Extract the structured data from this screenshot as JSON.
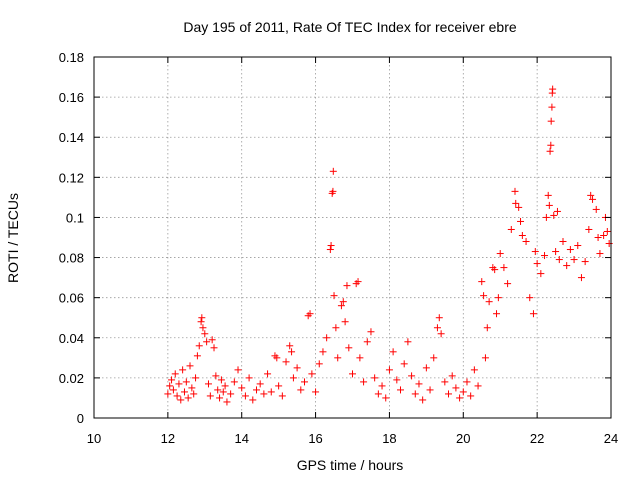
{
  "chart_data": {
    "type": "scatter",
    "title": "Day 195 of 2011, Rate Of TEC Index for receiver ebre",
    "xlabel": "GPS time / hours",
    "ylabel": "ROTI / TECUs",
    "xlim": [
      10,
      24
    ],
    "ylim": [
      0,
      0.18
    ],
    "xticks": [
      10,
      12,
      14,
      16,
      18,
      20,
      22,
      24
    ],
    "yticks": [
      0,
      0.02,
      0.04,
      0.06,
      0.08,
      0.1,
      0.12,
      0.14,
      0.16,
      0.18
    ],
    "xtick_labels": [
      "10",
      "12",
      "14",
      "16",
      "18",
      "20",
      "22",
      "24"
    ],
    "ytick_labels": [
      "0",
      "0.02",
      "0.04",
      "0.06",
      "0.08",
      "0.1",
      "0.12",
      "0.14",
      "0.16",
      "0.18"
    ],
    "grid": true,
    "marker": "+",
    "colors": {
      "points": "#ff0000",
      "grid": "#9a9a9a",
      "frame": "#000000"
    },
    "series": [
      {
        "values": [
          [
            12.0,
            0.012
          ],
          [
            12.05,
            0.016
          ],
          [
            12.1,
            0.019
          ],
          [
            12.15,
            0.014
          ],
          [
            12.2,
            0.022
          ],
          [
            12.25,
            0.011
          ],
          [
            12.3,
            0.017
          ],
          [
            12.35,
            0.009
          ],
          [
            12.4,
            0.024
          ],
          [
            12.45,
            0.013
          ],
          [
            12.5,
            0.018
          ],
          [
            12.55,
            0.01
          ],
          [
            12.6,
            0.026
          ],
          [
            12.65,
            0.015
          ],
          [
            12.7,
            0.012
          ],
          [
            12.75,
            0.02
          ],
          [
            12.8,
            0.031
          ],
          [
            12.85,
            0.036
          ],
          [
            12.9,
            0.048
          ],
          [
            12.92,
            0.05
          ],
          [
            12.95,
            0.045
          ],
          [
            13.0,
            0.042
          ],
          [
            13.05,
            0.038
          ],
          [
            13.1,
            0.017
          ],
          [
            13.15,
            0.011
          ],
          [
            13.2,
            0.039
          ],
          [
            13.25,
            0.035
          ],
          [
            13.3,
            0.021
          ],
          [
            13.35,
            0.014
          ],
          [
            13.4,
            0.01
          ],
          [
            13.45,
            0.019
          ],
          [
            13.5,
            0.013
          ],
          [
            13.55,
            0.016
          ],
          [
            13.6,
            0.008
          ],
          [
            13.7,
            0.012
          ],
          [
            13.8,
            0.018
          ],
          [
            13.9,
            0.024
          ],
          [
            14.0,
            0.015
          ],
          [
            14.1,
            0.011
          ],
          [
            14.2,
            0.02
          ],
          [
            14.3,
            0.009
          ],
          [
            14.4,
            0.014
          ],
          [
            14.5,
            0.017
          ],
          [
            14.6,
            0.012
          ],
          [
            14.7,
            0.022
          ],
          [
            14.8,
            0.013
          ],
          [
            14.9,
            0.031
          ],
          [
            14.95,
            0.03
          ],
          [
            15.0,
            0.016
          ],
          [
            15.1,
            0.011
          ],
          [
            15.2,
            0.028
          ],
          [
            15.3,
            0.036
          ],
          [
            15.35,
            0.033
          ],
          [
            15.4,
            0.02
          ],
          [
            15.5,
            0.025
          ],
          [
            15.6,
            0.014
          ],
          [
            15.7,
            0.018
          ],
          [
            15.8,
            0.051
          ],
          [
            15.85,
            0.052
          ],
          [
            15.9,
            0.022
          ],
          [
            16.0,
            0.013
          ],
          [
            16.1,
            0.027
          ],
          [
            16.2,
            0.033
          ],
          [
            16.3,
            0.04
          ],
          [
            16.4,
            0.084
          ],
          [
            16.42,
            0.086
          ],
          [
            16.45,
            0.112
          ],
          [
            16.47,
            0.113
          ],
          [
            16.48,
            0.123
          ],
          [
            16.5,
            0.061
          ],
          [
            16.55,
            0.045
          ],
          [
            16.6,
            0.03
          ],
          [
            16.7,
            0.056
          ],
          [
            16.75,
            0.058
          ],
          [
            16.8,
            0.048
          ],
          [
            16.85,
            0.066
          ],
          [
            16.9,
            0.035
          ],
          [
            17.0,
            0.022
          ],
          [
            17.1,
            0.067
          ],
          [
            17.15,
            0.068
          ],
          [
            17.2,
            0.03
          ],
          [
            17.3,
            0.018
          ],
          [
            17.4,
            0.038
          ],
          [
            17.5,
            0.043
          ],
          [
            17.6,
            0.02
          ],
          [
            17.7,
            0.012
          ],
          [
            17.8,
            0.016
          ],
          [
            17.9,
            0.01
          ],
          [
            18.0,
            0.024
          ],
          [
            18.1,
            0.033
          ],
          [
            18.2,
            0.019
          ],
          [
            18.3,
            0.014
          ],
          [
            18.4,
            0.027
          ],
          [
            18.5,
            0.038
          ],
          [
            18.6,
            0.021
          ],
          [
            18.7,
            0.012
          ],
          [
            18.8,
            0.017
          ],
          [
            18.9,
            0.009
          ],
          [
            19.0,
            0.025
          ],
          [
            19.1,
            0.014
          ],
          [
            19.2,
            0.03
          ],
          [
            19.3,
            0.045
          ],
          [
            19.35,
            0.05
          ],
          [
            19.4,
            0.042
          ],
          [
            19.5,
            0.018
          ],
          [
            19.6,
            0.012
          ],
          [
            19.7,
            0.021
          ],
          [
            19.8,
            0.015
          ],
          [
            19.9,
            0.01
          ],
          [
            20.0,
            0.013
          ],
          [
            20.1,
            0.018
          ],
          [
            20.2,
            0.011
          ],
          [
            20.3,
            0.024
          ],
          [
            20.4,
            0.016
          ],
          [
            20.5,
            0.068
          ],
          [
            20.55,
            0.061
          ],
          [
            20.6,
            0.03
          ],
          [
            20.65,
            0.045
          ],
          [
            20.7,
            0.058
          ],
          [
            20.8,
            0.075
          ],
          [
            20.85,
            0.074
          ],
          [
            20.9,
            0.052
          ],
          [
            20.95,
            0.06
          ],
          [
            21.0,
            0.082
          ],
          [
            21.1,
            0.075
          ],
          [
            21.2,
            0.067
          ],
          [
            21.3,
            0.094
          ],
          [
            21.4,
            0.113
          ],
          [
            21.42,
            0.107
          ],
          [
            21.5,
            0.105
          ],
          [
            21.55,
            0.098
          ],
          [
            21.6,
            0.091
          ],
          [
            21.7,
            0.088
          ],
          [
            21.8,
            0.06
          ],
          [
            21.9,
            0.052
          ],
          [
            21.95,
            0.083
          ],
          [
            22.0,
            0.077
          ],
          [
            22.1,
            0.072
          ],
          [
            22.2,
            0.081
          ],
          [
            22.25,
            0.1
          ],
          [
            22.3,
            0.111
          ],
          [
            22.33,
            0.106
          ],
          [
            22.35,
            0.133
          ],
          [
            22.37,
            0.136
          ],
          [
            22.38,
            0.148
          ],
          [
            22.4,
            0.155
          ],
          [
            22.41,
            0.162
          ],
          [
            22.42,
            0.164
          ],
          [
            22.45,
            0.101
          ],
          [
            22.5,
            0.083
          ],
          [
            22.55,
            0.103
          ],
          [
            22.6,
            0.079
          ],
          [
            22.7,
            0.088
          ],
          [
            22.8,
            0.076
          ],
          [
            22.9,
            0.084
          ],
          [
            23.0,
            0.079
          ],
          [
            23.1,
            0.086
          ],
          [
            23.2,
            0.07
          ],
          [
            23.3,
            0.078
          ],
          [
            23.4,
            0.094
          ],
          [
            23.45,
            0.111
          ],
          [
            23.5,
            0.109
          ],
          [
            23.6,
            0.104
          ],
          [
            23.65,
            0.09
          ],
          [
            23.7,
            0.082
          ],
          [
            23.8,
            0.091
          ],
          [
            23.85,
            0.1
          ],
          [
            23.9,
            0.093
          ],
          [
            23.95,
            0.087
          ]
        ]
      }
    ]
  }
}
